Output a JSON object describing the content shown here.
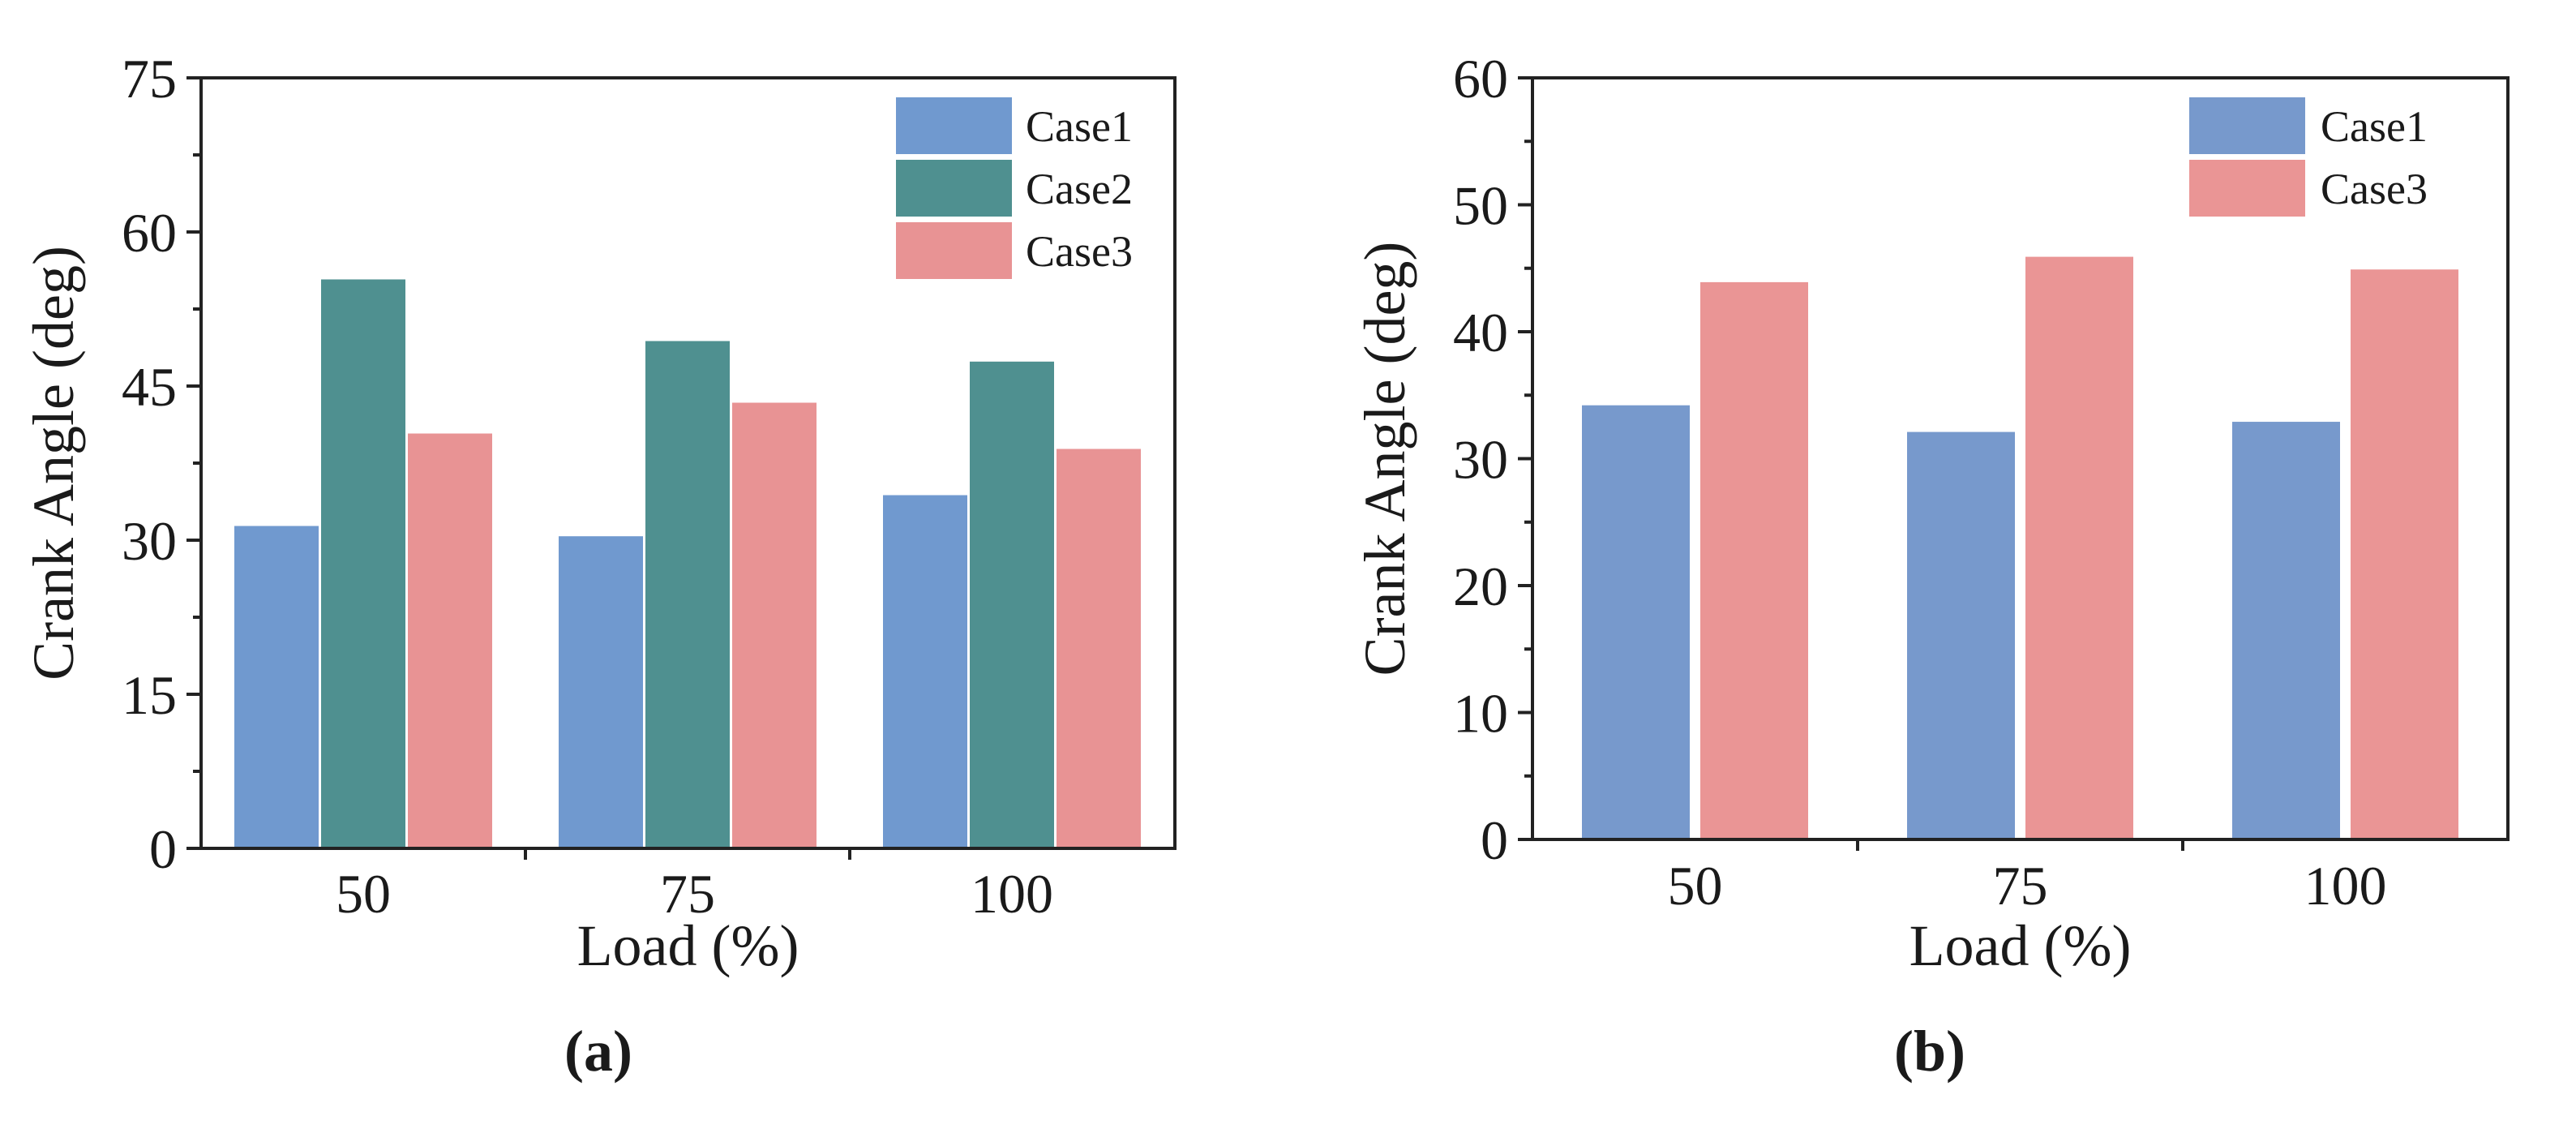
{
  "chart_data": [
    {
      "id": "a",
      "panel_label": "(a)",
      "type": "bar",
      "xlabel": "Load (%)",
      "ylabel": "Crank Angle (deg)",
      "categories": [
        "50",
        "75",
        "100"
      ],
      "ylim": [
        0,
        75
      ],
      "yticks": [
        0,
        15,
        30,
        45,
        60,
        75
      ],
      "legend_position": "top-right",
      "series": [
        {
          "name": "Case1",
          "color": "#7099cf",
          "values": [
            31.5,
            30.5,
            34.5
          ]
        },
        {
          "name": "Case2",
          "color": "#4f9090",
          "values": [
            55.5,
            49.5,
            47.5
          ]
        },
        {
          "name": "Case3",
          "color": "#e89394",
          "values": [
            40.5,
            43.5,
            39.0
          ]
        }
      ]
    },
    {
      "id": "b",
      "panel_label": "(b)",
      "type": "bar",
      "xlabel": "Load (%)",
      "ylabel": "Crank Angle (deg)",
      "categories": [
        "50",
        "75",
        "100"
      ],
      "ylim": [
        0,
        60
      ],
      "yticks": [
        0,
        10,
        20,
        30,
        40,
        50,
        60
      ],
      "legend_position": "top-right",
      "series": [
        {
          "name": "Case1",
          "color": "#7799cc",
          "values": [
            34.3,
            32.2,
            33.0
          ]
        },
        {
          "name": "Case3",
          "color": "#ea9595",
          "values": [
            44.0,
            46.0,
            45.0
          ]
        }
      ]
    }
  ]
}
